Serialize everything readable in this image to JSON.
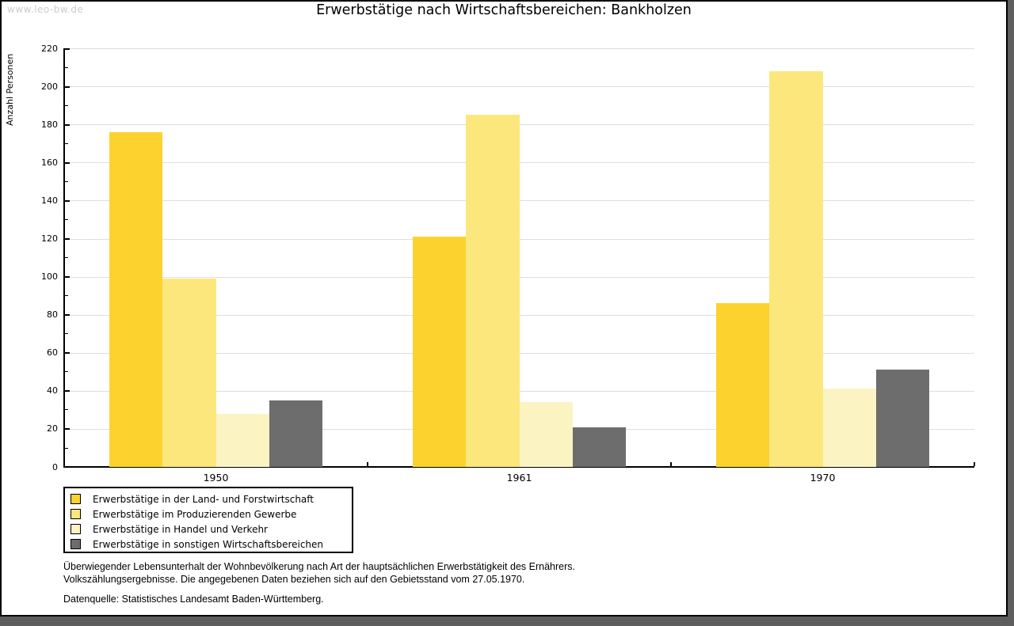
{
  "window": {
    "watermark": "www.leo-bw.de"
  },
  "title": "Erwerbstätige nach Wirtschaftsbereichen: Bankholzen",
  "chart_data": {
    "type": "bar",
    "title": "Erwerbstätige nach Wirtschaftsbereichen: Bankholzen",
    "xlabel": "",
    "ylabel": "Anzahl Personen",
    "ylim": [
      0,
      220
    ],
    "ytick_step": 20,
    "y_minor_tick_step": 10,
    "grid": true,
    "gridline_color": "#dedede",
    "legend_position": "bottom-left",
    "categories": [
      "1950",
      "1961",
      "1970"
    ],
    "series": [
      {
        "name": "Erwerbstätige in der Land- und Forstwirtschaft",
        "color": "#fcd32e",
        "values": [
          176,
          121,
          86
        ]
      },
      {
        "name": "Erwerbstätige im Produzierenden Gewerbe",
        "color": "#fce77d",
        "values": [
          99,
          185,
          208
        ]
      },
      {
        "name": "Erwerbstätige in Handel und Verkehr",
        "color": "#fcf3c3",
        "values": [
          28,
          34,
          41
        ]
      },
      {
        "name": "Erwerbstätige in sonstigen Wirtschaftsbereichen",
        "color": "#6d6d6d",
        "values": [
          35,
          21,
          51
        ]
      }
    ]
  },
  "footer": {
    "note_line1": "Überwiegender Lebensunterhalt der Wohnbevölkerung nach Art der hauptsächlichen Erwerbstätigkeit des Ernährers.",
    "note_line2": "Volkszählungsergebnisse. Die angegebenen Daten beziehen sich auf den Gebietsstand vom 27.05.1970.",
    "source": "Datenquelle: Statistisches Landesamt Baden-Württemberg."
  }
}
